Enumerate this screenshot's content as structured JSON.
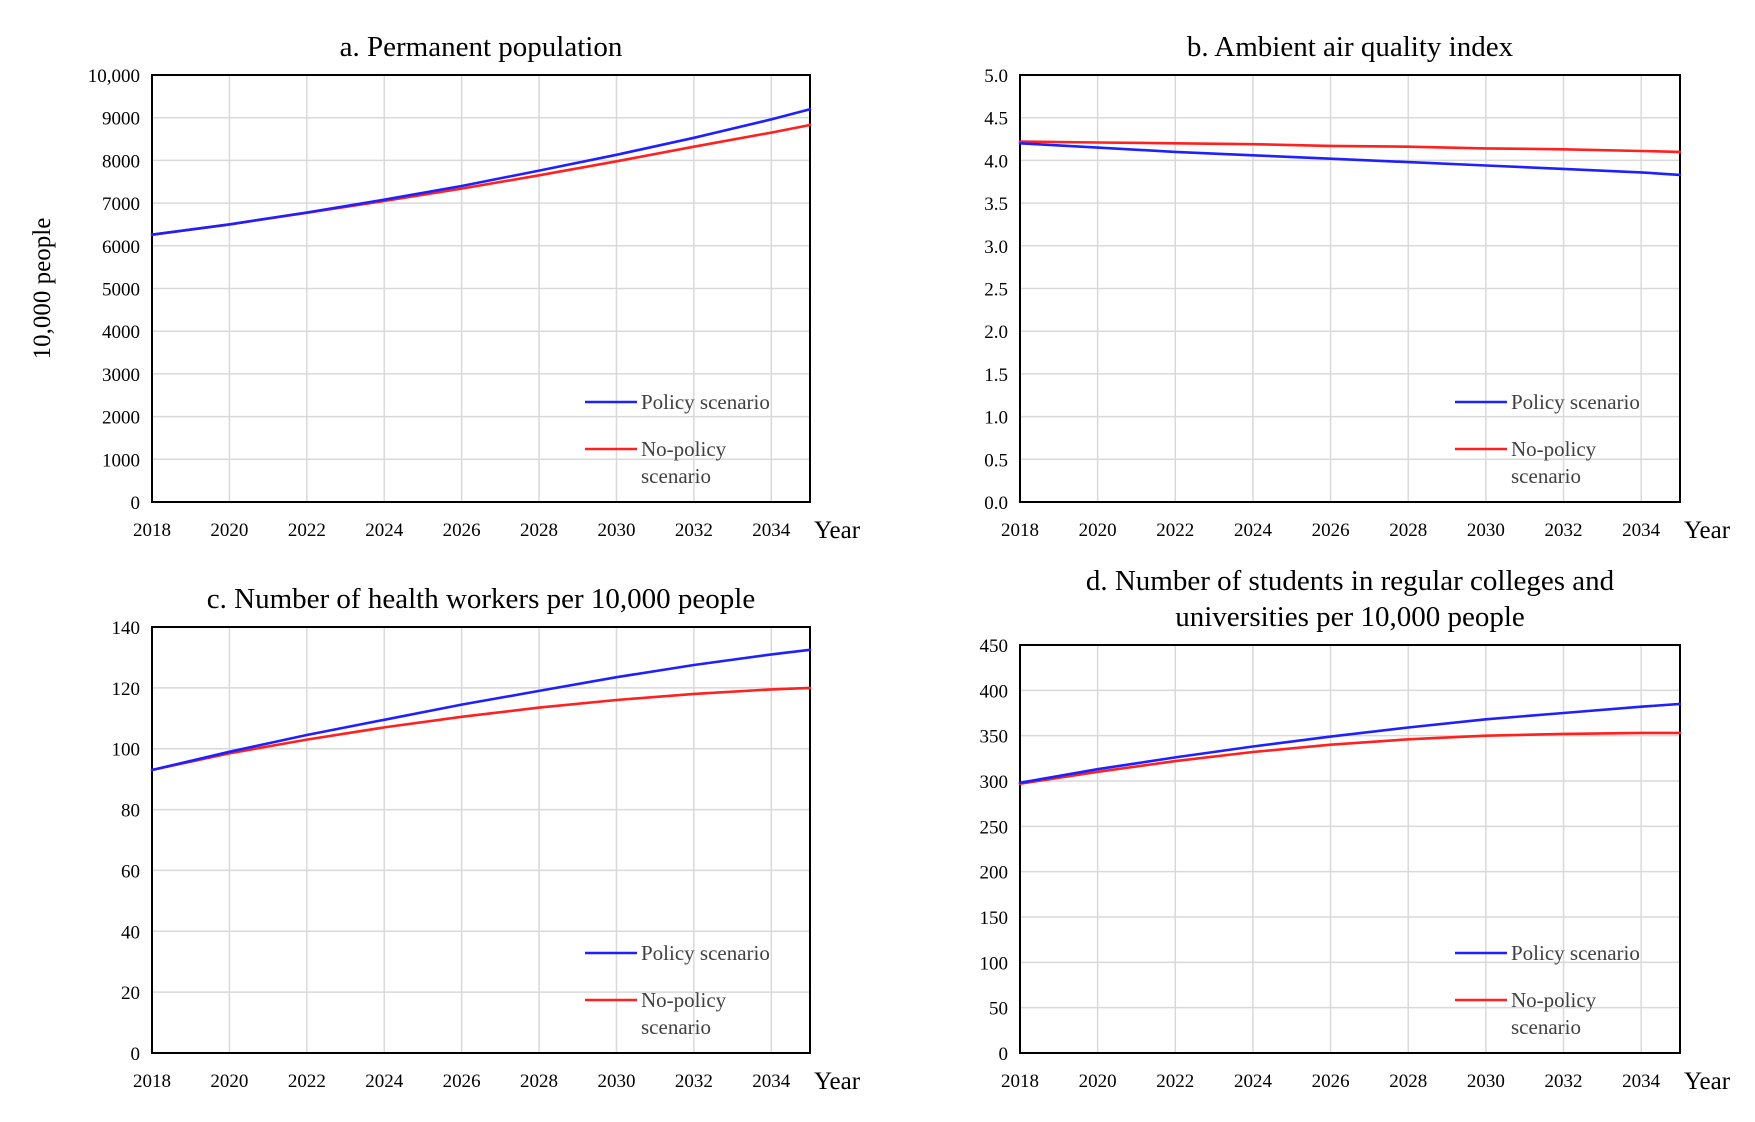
{
  "chart_data": [
    {
      "type": "line",
      "title": "a. Permanent population",
      "ylabel": "10,000 people",
      "xlabel": "Year",
      "x": [
        2018,
        2020,
        2022,
        2024,
        2026,
        2028,
        2030,
        2032,
        2034,
        2035
      ],
      "xticks": [
        "2018",
        "2020",
        "2022",
        "2024",
        "2026",
        "2028",
        "2030",
        "2032",
        "2034"
      ],
      "yticks": [
        "0",
        "1000",
        "2000",
        "3000",
        "4000",
        "5000",
        "6000",
        "7000",
        "8000",
        "9000",
        "10,000"
      ],
      "ylim": [
        0,
        10000
      ],
      "grid": true,
      "legend_position": "bottom-right",
      "series": [
        {
          "name": "Policy scenario",
          "color": "#2020ff",
          "values": [
            6260,
            6500,
            6780,
            7080,
            7400,
            7760,
            8130,
            8530,
            8960,
            9200
          ]
        },
        {
          "name": "No-policy scenario",
          "color": "#ff2020",
          "values": [
            6260,
            6500,
            6770,
            7050,
            7340,
            7650,
            7980,
            8320,
            8650,
            8830
          ]
        }
      ],
      "legend": [
        {
          "label": "Policy scenario",
          "lines": [
            "Policy scenario"
          ]
        },
        {
          "label": "No-policy scenario",
          "lines": [
            "No-policy",
            "scenario"
          ]
        }
      ]
    },
    {
      "type": "line",
      "title": "b. Ambient air quality index",
      "ylabel": "",
      "xlabel": "Year",
      "x": [
        2018,
        2020,
        2022,
        2024,
        2026,
        2028,
        2030,
        2032,
        2034,
        2035
      ],
      "xticks": [
        "2018",
        "2020",
        "2022",
        "2024",
        "2026",
        "2028",
        "2030",
        "2032",
        "2034"
      ],
      "yticks": [
        "0.0",
        "0.5",
        "1.0",
        "1.5",
        "2.0",
        "2.5",
        "3.0",
        "3.5",
        "4.0",
        "4.5",
        "5.0"
      ],
      "ylim": [
        0,
        5
      ],
      "grid": true,
      "legend_position": "bottom-right",
      "series": [
        {
          "name": "Policy scenario",
          "color": "#2020ff",
          "values": [
            4.2,
            4.15,
            4.1,
            4.06,
            4.02,
            3.98,
            3.94,
            3.9,
            3.86,
            3.83
          ]
        },
        {
          "name": "No-policy scenario",
          "color": "#ff2020",
          "values": [
            4.22,
            4.21,
            4.2,
            4.19,
            4.17,
            4.16,
            4.14,
            4.13,
            4.11,
            4.1
          ]
        }
      ],
      "legend": [
        {
          "label": "Policy scenario",
          "lines": [
            "Policy scenario"
          ]
        },
        {
          "label": "No-policy scenario",
          "lines": [
            "No-policy",
            "scenario"
          ]
        }
      ]
    },
    {
      "type": "line",
      "title": "c. Number of health workers per 10,000 people",
      "ylabel": "",
      "xlabel": "Year",
      "x": [
        2018,
        2020,
        2022,
        2024,
        2026,
        2028,
        2030,
        2032,
        2034,
        2035
      ],
      "xticks": [
        "2018",
        "2020",
        "2022",
        "2024",
        "2026",
        "2028",
        "2030",
        "2032",
        "2034"
      ],
      "yticks": [
        "0",
        "20",
        "40",
        "60",
        "80",
        "100",
        "120",
        "140"
      ],
      "ylim": [
        0,
        140
      ],
      "grid": true,
      "legend_position": "bottom-right",
      "series": [
        {
          "name": "Policy scenario",
          "color": "#2020ff",
          "values": [
            93,
            99,
            104.5,
            109.5,
            114.5,
            119,
            123.5,
            127.5,
            131,
            132.5
          ]
        },
        {
          "name": "No-policy scenario",
          "color": "#ff2020",
          "values": [
            93,
            98.5,
            103,
            107,
            110.5,
            113.5,
            116,
            118,
            119.5,
            120
          ]
        }
      ],
      "legend": [
        {
          "label": "Policy scenario",
          "lines": [
            "Policy scenario"
          ]
        },
        {
          "label": "No-policy scenario",
          "lines": [
            "No-policy",
            "scenario"
          ]
        }
      ]
    },
    {
      "type": "line",
      "title": "d. Number of students in regular colleges and universities per 10,000 people",
      "title_lines": [
        "d. Number of students in regular colleges and",
        "universities per 10,000 people"
      ],
      "ylabel": "",
      "xlabel": "Year",
      "x": [
        2018,
        2020,
        2022,
        2024,
        2026,
        2028,
        2030,
        2032,
        2034,
        2035
      ],
      "xticks": [
        "2018",
        "2020",
        "2022",
        "2024",
        "2026",
        "2028",
        "2030",
        "2032",
        "2034"
      ],
      "yticks": [
        "0",
        "50",
        "100",
        "150",
        "200",
        "250",
        "300",
        "350",
        "400",
        "450"
      ],
      "ylim": [
        0,
        450
      ],
      "grid": true,
      "legend_position": "bottom-right",
      "series": [
        {
          "name": "Policy scenario",
          "color": "#2020ff",
          "values": [
            298,
            313,
            326,
            338,
            349,
            359,
            368,
            375,
            382,
            385
          ]
        },
        {
          "name": "No-policy scenario",
          "color": "#ff2020",
          "values": [
            297,
            310,
            322,
            332,
            340,
            346,
            350,
            352,
            353,
            353
          ]
        }
      ],
      "legend": [
        {
          "label": "Policy scenario",
          "lines": [
            "Policy scenario"
          ]
        },
        {
          "label": "No-policy scenario",
          "lines": [
            "No-policy",
            "scenario"
          ]
        }
      ]
    }
  ]
}
